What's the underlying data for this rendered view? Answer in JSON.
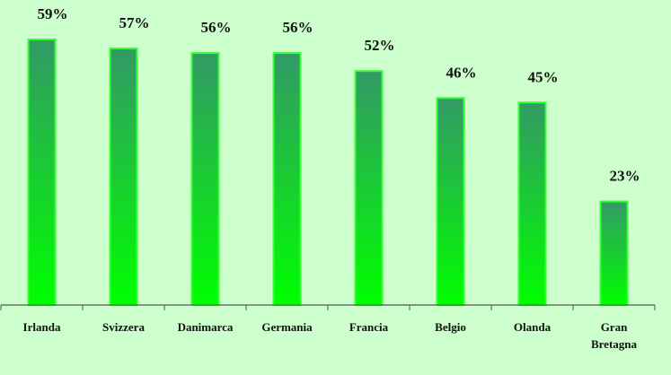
{
  "chart_data": {
    "type": "bar",
    "title": "",
    "xlabel": "",
    "ylabel": "",
    "categories": [
      "Irlanda",
      "Svizzera",
      "Danimarca",
      "Germania",
      "Francia",
      "Belgio",
      "Olanda",
      "Gran Bretagna"
    ],
    "category_lines": [
      [
        "Irlanda"
      ],
      [
        "Svizzera"
      ],
      [
        "Danimarca"
      ],
      [
        "Germania"
      ],
      [
        "Francia"
      ],
      [
        "Belgio"
      ],
      [
        "Olanda"
      ],
      [
        "Gran",
        "Bretagna"
      ]
    ],
    "values": [
      59,
      57,
      56,
      56,
      52,
      46,
      45,
      23
    ],
    "value_labels": [
      "59%",
      "57%",
      "56%",
      "56%",
      "52%",
      "46%",
      "45%",
      "23%"
    ],
    "ylim": [
      0,
      62
    ],
    "grid": false,
    "legend": "none"
  },
  "colors": {
    "background": "#ccffcc",
    "bar_top": "#339966",
    "bar_bottom": "#00ff00",
    "bar_outline": "#33ff33",
    "axis": "#555555",
    "text": "#111111"
  }
}
